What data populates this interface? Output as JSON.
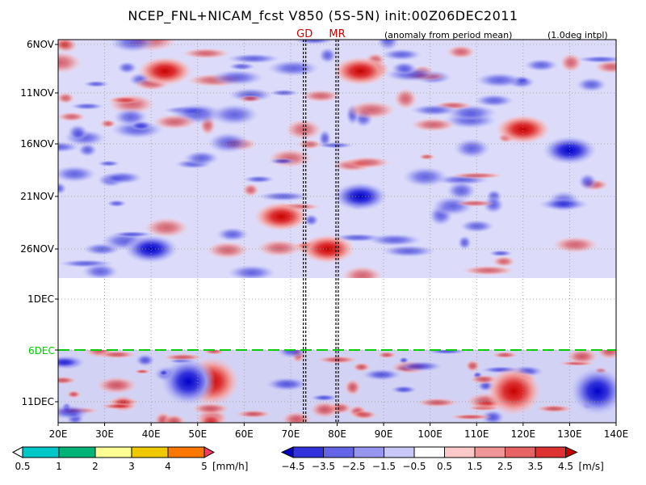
{
  "title": "NCEP_FNL+NICAM_fcst  V850  (5S-5N)  init:00Z06DEC2011",
  "notes": {
    "anomaly": "(anomaly from period mean)",
    "interp": "(1.0deg intpl)"
  },
  "colors": {
    "rain_scale": [
      "#ffffff",
      "#00c8c8",
      "#00b478",
      "#ffff96",
      "#f0c800",
      "#fa7800",
      "#f03c64"
    ],
    "wind_scale": [
      "#0000c8",
      "#3232dc",
      "#6464e6",
      "#9696f0",
      "#c8c8fa",
      "#ffffff",
      "#ffc8c8",
      "#f09696",
      "#e66464",
      "#dc3232",
      "#c80000"
    ],
    "forecast_line": "#00cc00"
  },
  "chart_data": {
    "type": "heatmap",
    "x_axis": {
      "tick_labels": [
        "20E",
        "30E",
        "40E",
        "50E",
        "60E",
        "70E",
        "80E",
        "90E",
        "100E",
        "110E",
        "120E",
        "130E",
        "140E"
      ],
      "range_deg": [
        20,
        140
      ]
    },
    "y_axis": {
      "tick_labels": [
        "6NOV",
        "11NOV",
        "16NOV",
        "21NOV",
        "26NOV",
        "1DEC",
        "6DEC",
        "11DEC"
      ]
    },
    "markers": [
      {
        "label": "GD",
        "lon": 73
      },
      {
        "label": "MR",
        "lon": 80
      }
    ],
    "forecast_start_label": "6DEC",
    "analysis_period": [
      "6NOV",
      "28NOV"
    ],
    "forecast_period": [
      "6DEC",
      "13DEC"
    ],
    "features": [
      {
        "type": "positive",
        "lon": 43,
        "date": "9NOV",
        "value": 4.5
      },
      {
        "type": "positive",
        "lon": 85,
        "date": "9NOV",
        "value": 4.5
      },
      {
        "type": "positive",
        "lon": 120,
        "date": "15NOV",
        "value": 3.5
      },
      {
        "type": "positive",
        "lon": 68,
        "date": "23NOV",
        "value": 4.5
      },
      {
        "type": "positive",
        "lon": 78,
        "date": "26NOV",
        "value": 4.5
      },
      {
        "type": "positive",
        "lon": 53,
        "date": "9DEC",
        "value": 4.5
      },
      {
        "type": "positive",
        "lon": 118,
        "date": "10DEC",
        "value": 4.5
      },
      {
        "type": "negative",
        "lon": 48,
        "date": "9DEC",
        "value": -4.5
      },
      {
        "type": "negative",
        "lon": 136,
        "date": "10DEC",
        "value": -4.5
      },
      {
        "type": "negative",
        "lon": 130,
        "date": "17NOV",
        "value": -3.5
      },
      {
        "type": "negative",
        "lon": 40,
        "date": "26NOV",
        "value": -3.5
      },
      {
        "type": "negative",
        "lon": 85,
        "date": "21NOV",
        "value": -3.5
      }
    ],
    "grid": true
  },
  "legend_rain": {
    "labels": [
      "0.5",
      "1",
      "2",
      "3",
      "4",
      "5"
    ],
    "unit": "[mm/h]"
  },
  "legend_wind": {
    "labels": [
      "−4.5",
      "−3.5",
      "−2.5",
      "−1.5",
      "−0.5",
      "0.5",
      "1.5",
      "2.5",
      "3.5",
      "4.5"
    ],
    "unit": "[m/s]"
  }
}
